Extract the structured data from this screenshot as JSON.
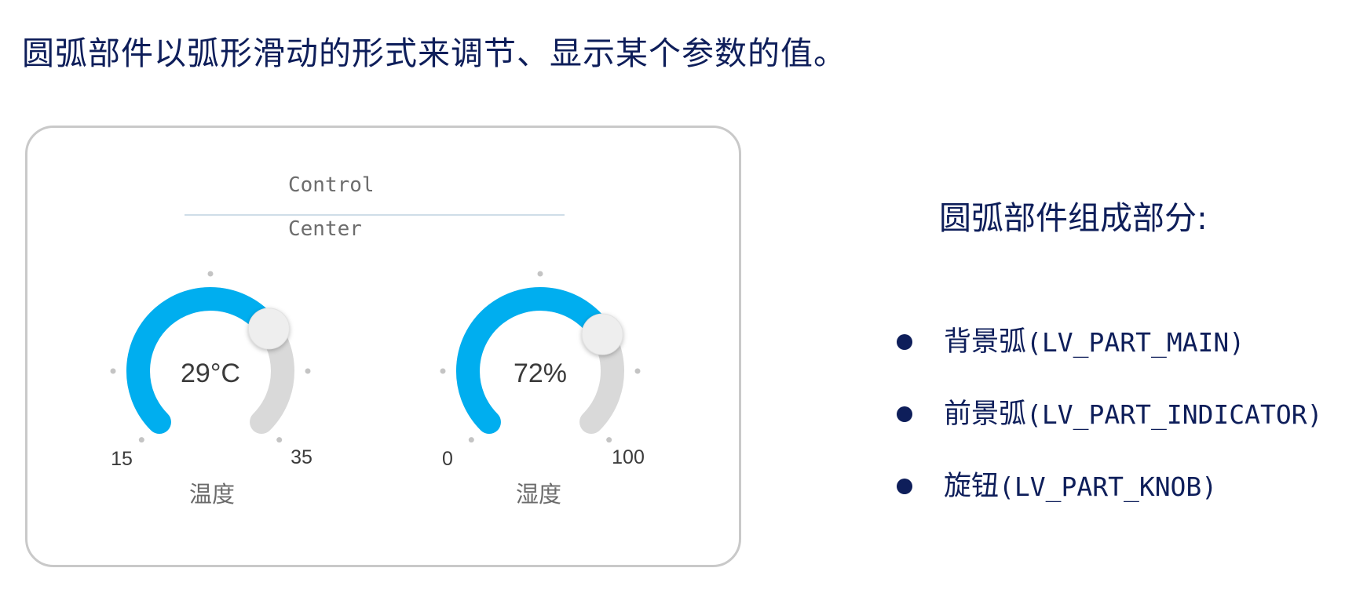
{
  "headline": "圆弧部件以弧形滑动的形式来调节、显示某个参数的值。",
  "panel": {
    "title_line1": "Control",
    "title_line2": "Center",
    "gauges": [
      {
        "value_text": "29°C",
        "min_label": "15",
        "max_label": "35",
        "label": "温度",
        "fraction": 0.7
      },
      {
        "value_text": "72%",
        "min_label": "0",
        "max_label": "100",
        "label": "湿度",
        "fraction": 0.72
      }
    ],
    "colors": {
      "indicator": "#00aeef",
      "background_arc": "#d9d9d9",
      "knob": "#eeeeee",
      "dots": "#c4c4c4"
    }
  },
  "parts": {
    "title": "圆弧部件组成部分:",
    "items": [
      {
        "name": "背景弧",
        "code": "(LV_PART_MAIN)"
      },
      {
        "name": "前景弧",
        "code": "(LV_PART_INDICATOR)"
      },
      {
        "name": "旋钮",
        "code": "(LV_PART_KNOB)"
      }
    ]
  }
}
